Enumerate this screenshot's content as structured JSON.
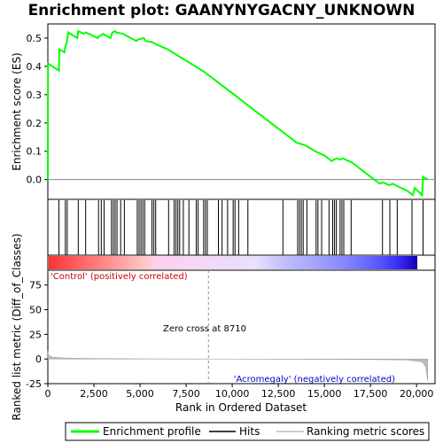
{
  "chart_data": {
    "type": "line",
    "title": "Enrichment plot: GAANYNYGACNY_UNKNOWN",
    "top_panel": {
      "ylabel": "Enrichment score (ES)",
      "ylim": [
        -0.07,
        0.55
      ],
      "yticks": [
        "0.0",
        "0.1",
        "0.2",
        "0.3",
        "0.4",
        "0.5"
      ],
      "ytick_values": [
        0.0,
        0.1,
        0.2,
        0.3,
        0.4,
        0.5
      ],
      "line_color": "#00ff00",
      "es_profile": {
        "x": [
          0,
          10,
          600,
          620,
          900,
          950,
          1050,
          1100,
          1600,
          1650,
          1950,
          2050,
          2700,
          2750,
          2900,
          3000,
          3400,
          3500,
          3650,
          3700,
          4100,
          4200,
          4800,
          4900,
          5200,
          5300,
          5700,
          5800,
          6500,
          7000,
          7500,
          8000,
          8500,
          9000,
          9500,
          10000,
          10500,
          11000,
          11500,
          12000,
          12500,
          13000,
          13500,
          14000,
          14500,
          15000,
          15400,
          15500,
          15700,
          15800,
          16000,
          16500,
          17000,
          17500,
          18000,
          18200,
          18500,
          18700,
          19000,
          19500,
          19800,
          19900,
          20300,
          20350,
          20600
        ],
        "es": [
          0.0,
          0.41,
          0.385,
          0.46,
          0.45,
          0.47,
          0.49,
          0.52,
          0.5,
          0.525,
          0.515,
          0.52,
          0.5,
          0.505,
          0.51,
          0.515,
          0.5,
          0.52,
          0.525,
          0.52,
          0.515,
          0.51,
          0.49,
          0.495,
          0.5,
          0.49,
          0.485,
          0.48,
          0.46,
          0.44,
          0.42,
          0.4,
          0.38,
          0.355,
          0.33,
          0.305,
          0.28,
          0.255,
          0.23,
          0.205,
          0.18,
          0.155,
          0.13,
          0.12,
          0.1,
          0.085,
          0.065,
          0.07,
          0.075,
          0.07,
          0.075,
          0.06,
          0.035,
          0.01,
          -0.015,
          -0.01,
          -0.02,
          -0.015,
          -0.025,
          -0.04,
          -0.055,
          -0.03,
          -0.055,
          0.01,
          0.0
        ]
      }
    },
    "hits": [
      600,
      950,
      1050,
      1650,
      2050,
      2750,
      2900,
      3050,
      3450,
      3550,
      3650,
      3750,
      3950,
      4150,
      4850,
      4950,
      5050,
      5150,
      5250,
      5650,
      5750,
      5850,
      6550,
      6850,
      6950,
      7050,
      7150,
      7350,
      7650,
      8050,
      8150,
      8450,
      8550,
      8650,
      9250,
      9450,
      9750,
      10050,
      10150,
      10350,
      10850,
      12750,
      13550,
      13650,
      13750,
      13850,
      14050,
      14550,
      14650,
      14850,
      15250,
      15450,
      15550,
      15650,
      15850,
      15950,
      16050,
      16450,
      18150,
      18550,
      18950,
      19750,
      20350
    ],
    "ranked_metric": {
      "ylabel": "Ranked list metric (Diff_of_Classes)",
      "ylim": [
        -25,
        90
      ],
      "yticks": [
        "-25",
        "0",
        "25",
        "50",
        "75"
      ],
      "ytick_values": [
        -25,
        0,
        25,
        50,
        75
      ],
      "x": [
        0,
        50,
        200,
        500,
        1000,
        2000,
        3000,
        5000,
        8710,
        12000,
        17000,
        19500,
        20300,
        20500,
        20600
      ],
      "values": [
        8,
        4,
        2,
        1.5,
        1,
        0.6,
        0.4,
        0.2,
        0,
        -0.2,
        -0.5,
        -1,
        -3,
        -8,
        -22
      ]
    },
    "xlabel": "Rank in Ordered Dataset",
    "xlim": [
      0,
      21000
    ],
    "xticks": [
      "0",
      "2,500",
      "5,000",
      "7,500",
      "10,000",
      "12,500",
      "15,000",
      "17,500",
      "20,000"
    ],
    "xtick_values": [
      0,
      2500,
      5000,
      7500,
      10000,
      12500,
      15000,
      17500,
      20000
    ],
    "zero_cross_label": "Zero cross at 8710",
    "zero_cross_value": 8710,
    "positive_label": "'Control' (positively correlated)",
    "negative_label": "'Acromegaly' (negatively correlated)",
    "legend": [
      {
        "label": "Enrichment profile",
        "color": "#00ff00"
      },
      {
        "label": "Hits",
        "color": "#000000"
      },
      {
        "label": "Ranking metric scores",
        "color": "#bbbbbb"
      }
    ]
  }
}
